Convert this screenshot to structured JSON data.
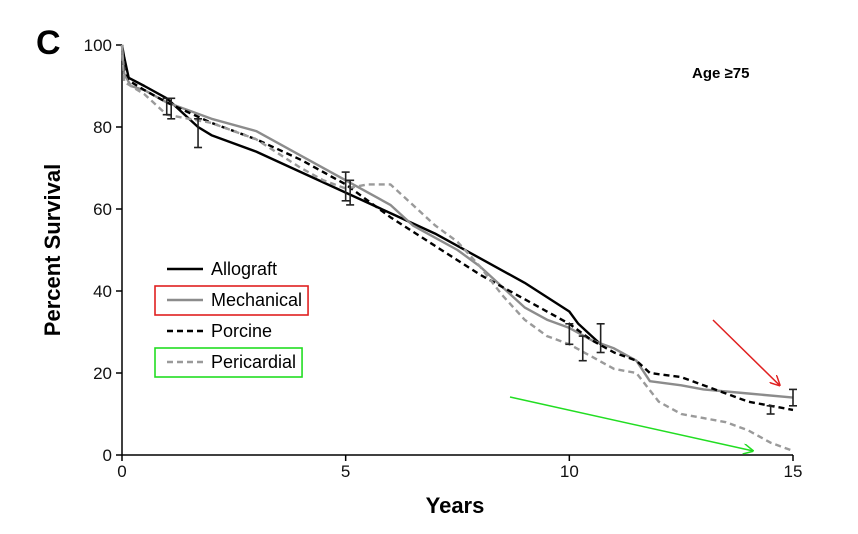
{
  "chart_data": {
    "type": "line",
    "panel_label": "C",
    "annotation": "Age ≥75",
    "xlabel": "Years",
    "ylabel": "Percent Survival",
    "xlim": [
      0,
      15
    ],
    "ylim": [
      0,
      100
    ],
    "xticks": [
      0,
      5,
      10,
      15
    ],
    "yticks": [
      0,
      20,
      40,
      60,
      80,
      100
    ],
    "grid": false,
    "legend_position": "left",
    "series": [
      {
        "name": "Allograft",
        "color": "#000000",
        "dash": "solid",
        "x": [
          0,
          0.05,
          0.15,
          0.5,
          1.0,
          1.2,
          1.7,
          2.0,
          3,
          4,
          5,
          6,
          7,
          8,
          9,
          10,
          10.2,
          10.5,
          10.7
        ],
        "y": [
          100,
          97,
          92,
          90,
          87,
          85,
          80,
          78,
          74,
          69,
          64,
          59,
          54,
          48,
          42,
          35,
          32,
          29,
          27
        ],
        "error_bars": [
          {
            "x": 1.1,
            "y": 85,
            "lo": 82,
            "hi": 87
          },
          {
            "x": 1.7,
            "y": 78,
            "lo": 75,
            "hi": 82
          },
          {
            "x": 10.7,
            "y": 28,
            "lo": 25,
            "hi": 32
          }
        ]
      },
      {
        "name": "Mechanical",
        "color": "#8c8c8c",
        "dash": "solid",
        "x": [
          0,
          0.05,
          0.2,
          0.5,
          1,
          2,
          3,
          4,
          5,
          5.5,
          6,
          6.5,
          7,
          7.5,
          8,
          8.5,
          9,
          9.5,
          10,
          10.5,
          11,
          11.5,
          11.8,
          12.5,
          13,
          14,
          15
        ],
        "y": [
          100,
          93,
          90,
          89,
          86,
          82,
          79,
          73,
          67,
          64,
          61,
          56,
          53,
          50,
          46,
          41,
          36,
          33,
          31,
          28,
          26,
          23,
          18,
          17,
          16,
          15,
          14
        ],
        "error_bars": [
          {
            "x": 5.0,
            "y": 65,
            "lo": 62,
            "hi": 69
          },
          {
            "x": 15.0,
            "y": 14,
            "lo": 12,
            "hi": 16
          }
        ]
      },
      {
        "name": "Porcine",
        "color": "#000000",
        "dash": "dashed",
        "x": [
          0,
          0.05,
          0.2,
          0.5,
          1,
          2,
          3,
          4,
          5,
          6,
          7,
          8,
          9,
          10,
          10.5,
          11,
          11.5,
          11.8,
          12.5,
          13,
          13.5,
          14,
          14.5,
          15
        ],
        "y": [
          100,
          94,
          91,
          89,
          86,
          81,
          77,
          72,
          66,
          58,
          51,
          44,
          38,
          32,
          28,
          25,
          23,
          20,
          19,
          17,
          15,
          13,
          12,
          11
        ],
        "error_bars": [
          {
            "x": 1.0,
            "y": 85,
            "lo": 83,
            "hi": 87
          },
          {
            "x": 10.0,
            "y": 30,
            "lo": 27,
            "hi": 32
          },
          {
            "x": 14.5,
            "y": 11,
            "lo": 10,
            "hi": 12
          }
        ]
      },
      {
        "name": "Pericardial",
        "color": "#9a9a9a",
        "dash": "dashed",
        "x": [
          0,
          0.05,
          0.2,
          0.5,
          1,
          2,
          3,
          4,
          4.5,
          5,
          5.5,
          6,
          6.5,
          7,
          7.5,
          8,
          8.5,
          9,
          9.5,
          10,
          10.5,
          11,
          11.5,
          12,
          12.5,
          13,
          13.5,
          14,
          14.5,
          15
        ],
        "y": [
          100,
          91,
          90,
          88,
          83,
          81,
          77,
          70,
          67,
          65,
          66,
          66,
          61,
          56,
          52,
          46,
          39,
          33,
          29,
          27,
          24,
          21,
          20,
          13,
          10,
          9,
          8,
          6,
          3,
          1
        ],
        "error_bars": [
          {
            "x": 5.1,
            "y": 64,
            "lo": 61,
            "hi": 67
          },
          {
            "x": 10.3,
            "y": 26,
            "lo": 23,
            "hi": 29
          }
        ]
      }
    ],
    "highlights": [
      {
        "target": "Mechanical",
        "box_color": "#e02020",
        "arrow_color": "#e02020",
        "arrow_to": {
          "x": 14.7,
          "y": 17
        }
      },
      {
        "target": "Pericardial",
        "box_color": "#22dd22",
        "arrow_color": "#22dd22",
        "arrow_to": {
          "x": 14.1,
          "y": 1
        }
      }
    ]
  }
}
